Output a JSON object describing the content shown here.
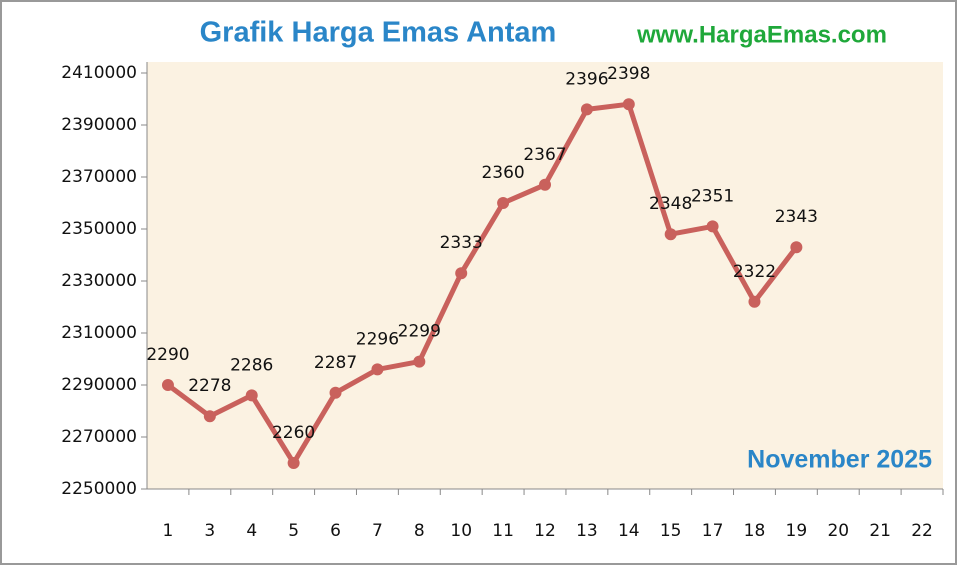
{
  "chart_data": {
    "type": "line",
    "title": "Grafik Harga Emas Antam",
    "subtitle": "www.HargaEmas.com",
    "annotation": "November 2025",
    "categories": [
      "1",
      "3",
      "4",
      "5",
      "6",
      "7",
      "8",
      "10",
      "11",
      "12",
      "13",
      "14",
      "15",
      "17",
      "18",
      "19",
      "20",
      "21",
      "22"
    ],
    "series": [
      {
        "name": "Harga",
        "color": "#c9615c",
        "values": [
          2290000,
          2278000,
          2286000,
          2260000,
          2287000,
          2296000,
          2299000,
          2333000,
          2360000,
          2367000,
          2396000,
          2398000,
          2348000,
          2351000,
          2322000,
          2343000,
          null,
          null,
          null
        ],
        "value_labels": [
          "2290",
          "2278",
          "2286",
          "2260",
          "2287",
          "2296",
          "2299",
          "2333",
          "2360",
          "2367",
          "2396",
          "2398",
          "2348",
          "2351",
          "2322",
          "2343",
          null,
          null,
          null
        ]
      }
    ],
    "ylim": [
      2250000,
      2410000
    ],
    "yticks": [
      2250000,
      2270000,
      2290000,
      2310000,
      2330000,
      2350000,
      2370000,
      2390000,
      2410000
    ],
    "grid": false
  }
}
